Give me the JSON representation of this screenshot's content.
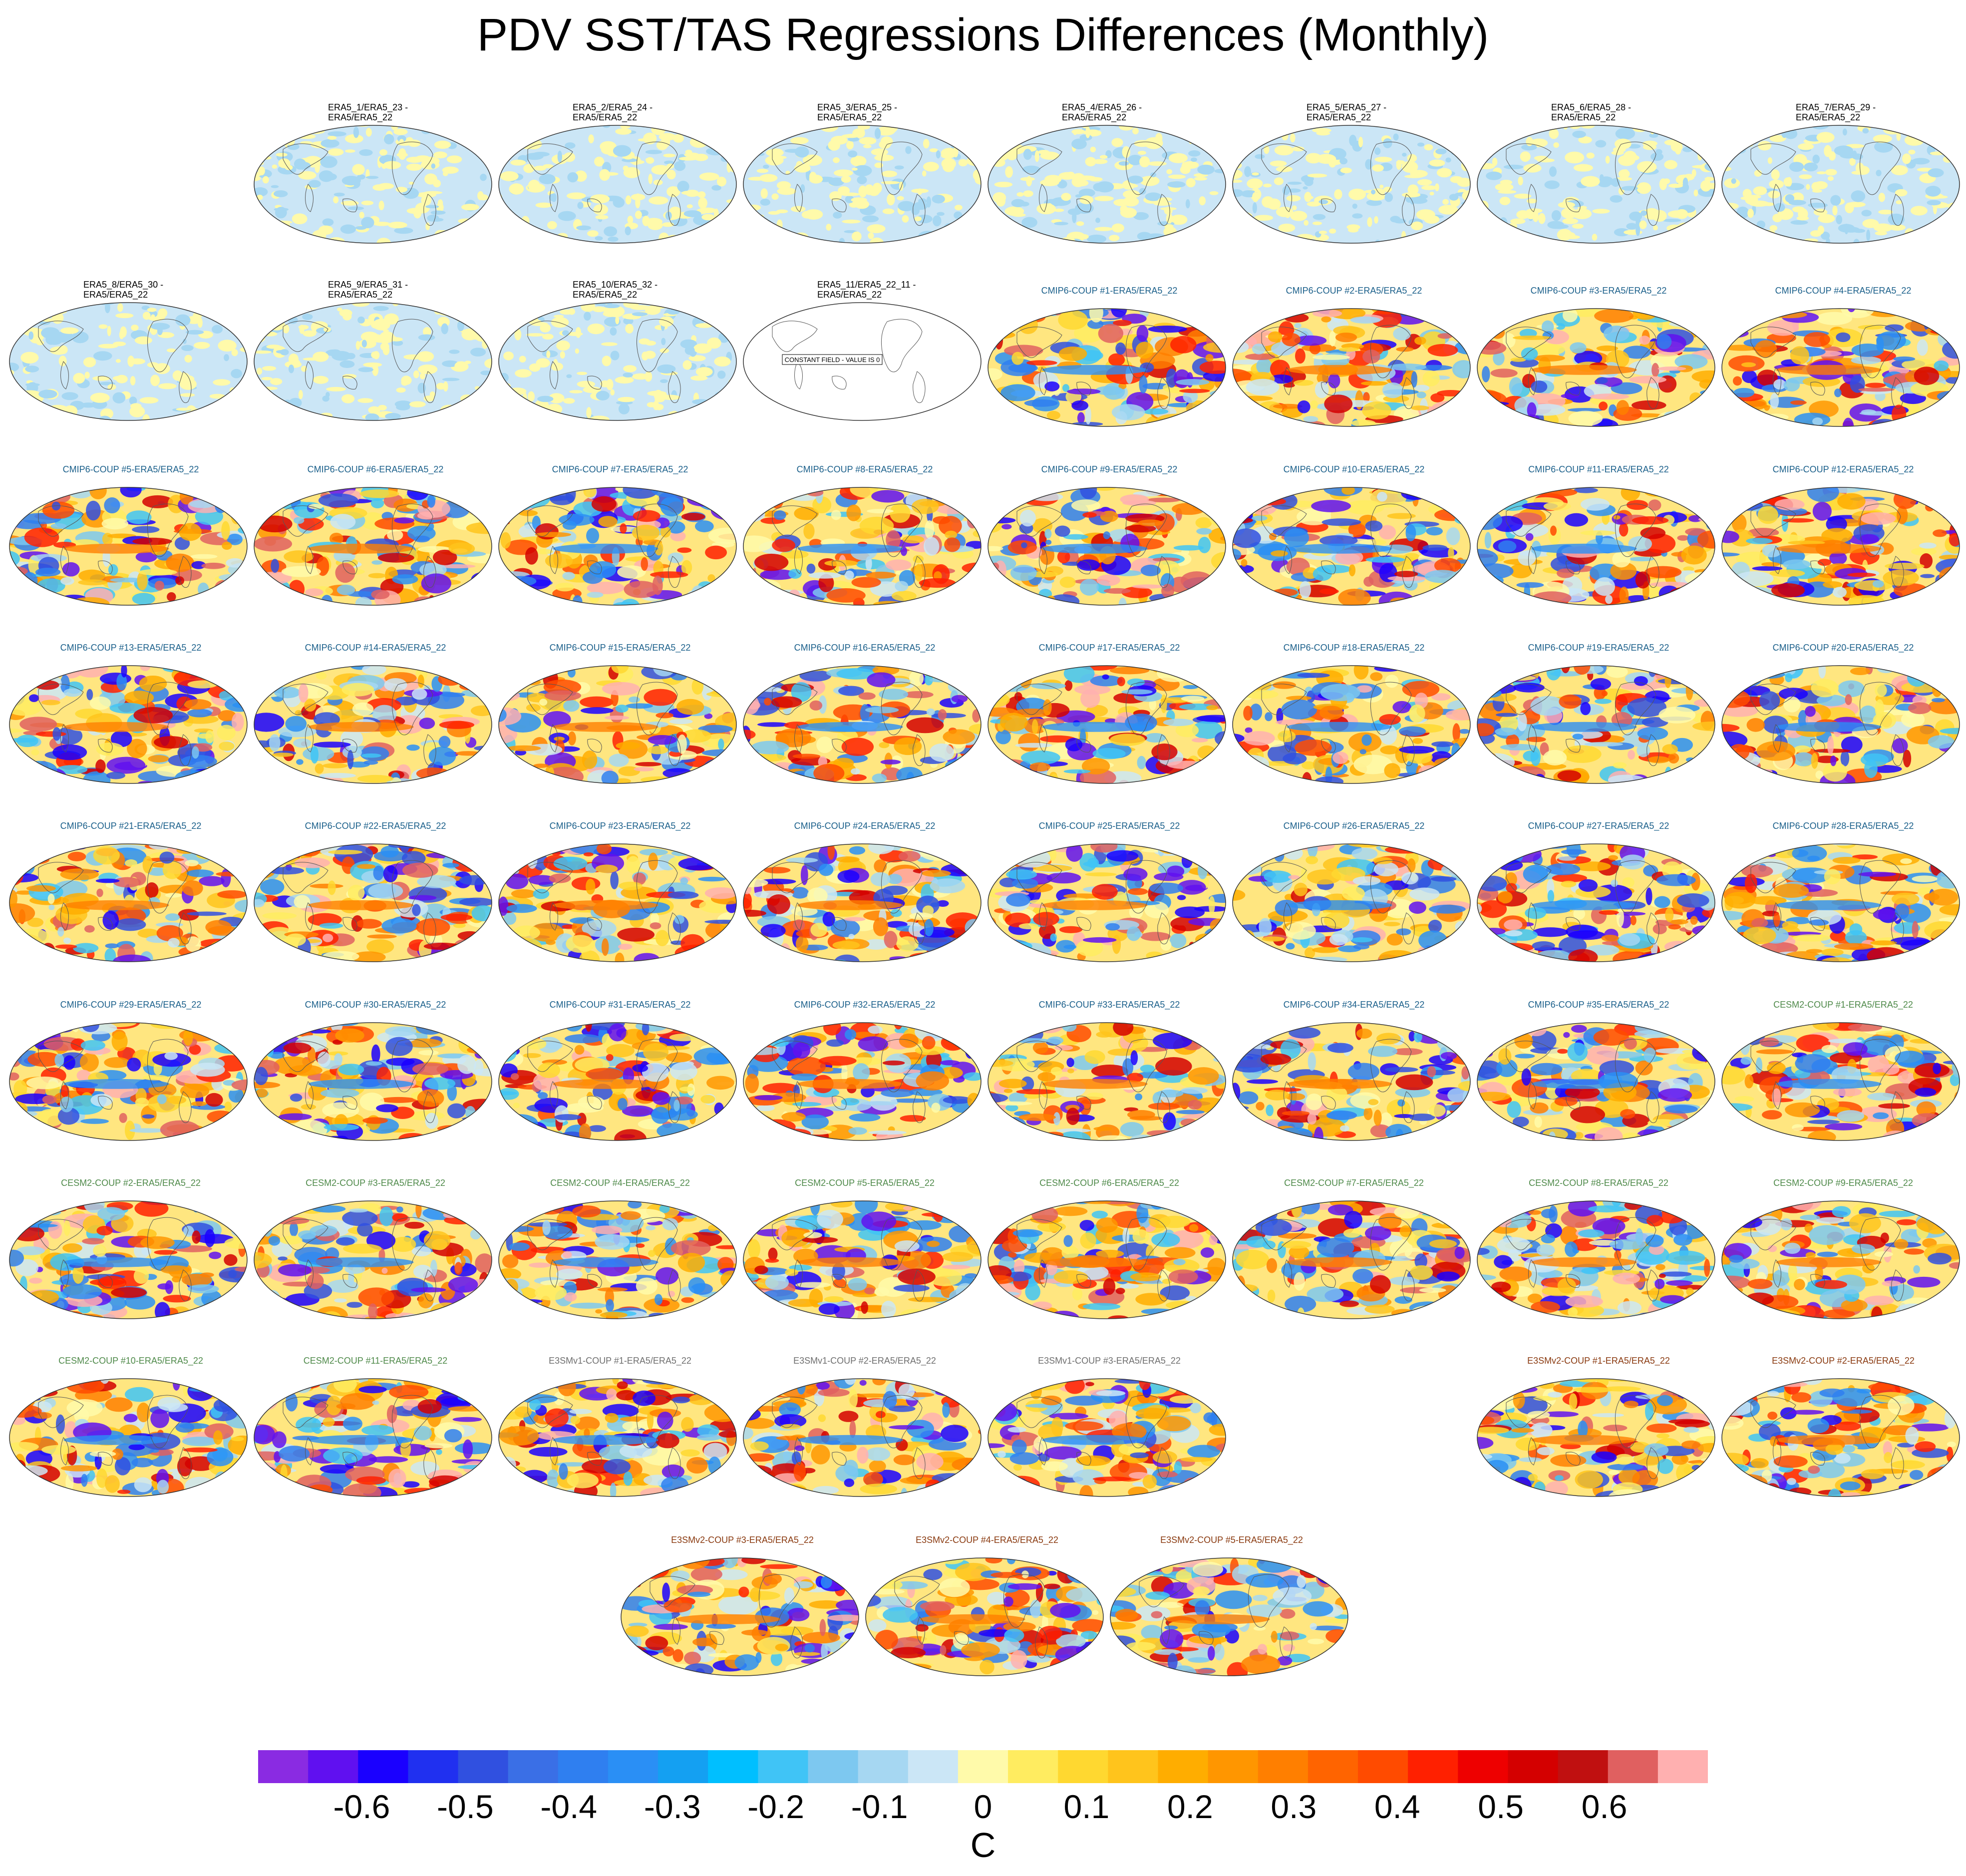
{
  "title": "PDV SST/TAS Regressions Differences (Monthly)",
  "constant_field_note": "CONSTANT FIELD - VALUE IS 0",
  "colorbar": {
    "unit": "C",
    "tick_labels": [
      "-0.6",
      "-0.5",
      "-0.4",
      "-0.3",
      "-0.2",
      "-0.1",
      "0",
      "0.1",
      "0.2",
      "0.3",
      "0.4",
      "0.5",
      "0.6"
    ],
    "colors": [
      "#8a2be2",
      "#6010f0",
      "#1a00ff",
      "#2030f0",
      "#3050e0",
      "#3a6fe6",
      "#2f7ff0",
      "#2a8ff5",
      "#14a0f2",
      "#00bfff",
      "#40c4f6",
      "#7dc8f0",
      "#a6d7f2",
      "#cbe6f6",
      "#fffaaa",
      "#ffec60",
      "#ffd830",
      "#ffc41c",
      "#ffad00",
      "#ff9600",
      "#ff7f00",
      "#ff6400",
      "#ff4b00",
      "#ff2000",
      "#ee0000",
      "#d40000",
      "#c01010",
      "#e06060",
      "#ffb0b0"
    ]
  },
  "panels": [
    {
      "l1": "ERA5_1/ERA5_23 -",
      "l2": "ERA5/ERA5_22",
      "group": "era5"
    },
    {
      "l1": "ERA5_2/ERA5_24 -",
      "l2": "ERA5/ERA5_22",
      "group": "era5"
    },
    {
      "l1": "ERA5_3/ERA5_25 -",
      "l2": "ERA5/ERA5_22",
      "group": "era5"
    },
    {
      "l1": "ERA5_4/ERA5_26 -",
      "l2": "ERA5/ERA5_22",
      "group": "era5"
    },
    {
      "l1": "ERA5_5/ERA5_27 -",
      "l2": "ERA5/ERA5_22",
      "group": "era5"
    },
    {
      "l1": "ERA5_6/ERA5_28 -",
      "l2": "ERA5/ERA5_22",
      "group": "era5"
    },
    {
      "l1": "ERA5_7/ERA5_29 -",
      "l2": "ERA5/ERA5_22",
      "group": "era5"
    },
    {
      "l1": "ERA5_8/ERA5_30 -",
      "l2": "ERA5/ERA5_22",
      "group": "era5"
    },
    {
      "l1": "ERA5_9/ERA5_31 -",
      "l2": "ERA5/ERA5_22",
      "group": "era5"
    },
    {
      "l1": "ERA5_10/ERA5_32 -",
      "l2": "ERA5/ERA5_22",
      "group": "era5"
    },
    {
      "l1": "ERA5_11/ERA5_22_11 -",
      "l2": "ERA5/ERA5_22",
      "group": "const"
    },
    {
      "l1": "CMIP6-COUP  #1-ERA5/ERA5_22",
      "group": "cmip"
    },
    {
      "l1": "CMIP6-COUP  #2-ERA5/ERA5_22",
      "group": "cmip"
    },
    {
      "l1": "CMIP6-COUP  #3-ERA5/ERA5_22",
      "group": "cmip"
    },
    {
      "l1": "CMIP6-COUP  #4-ERA5/ERA5_22",
      "group": "cmip"
    },
    {
      "l1": "CMIP6-COUP  #5-ERA5/ERA5_22",
      "group": "cmip"
    },
    {
      "l1": "CMIP6-COUP  #6-ERA5/ERA5_22",
      "group": "cmip"
    },
    {
      "l1": "CMIP6-COUP  #7-ERA5/ERA5_22",
      "group": "cmip"
    },
    {
      "l1": "CMIP6-COUP  #8-ERA5/ERA5_22",
      "group": "cmip"
    },
    {
      "l1": "CMIP6-COUP  #9-ERA5/ERA5_22",
      "group": "cmip"
    },
    {
      "l1": "CMIP6-COUP  #10-ERA5/ERA5_22",
      "group": "cmip"
    },
    {
      "l1": "CMIP6-COUP  #11-ERA5/ERA5_22",
      "group": "cmip"
    },
    {
      "l1": "CMIP6-COUP  #12-ERA5/ERA5_22",
      "group": "cmip"
    },
    {
      "l1": "CMIP6-COUP  #13-ERA5/ERA5_22",
      "group": "cmip"
    },
    {
      "l1": "CMIP6-COUP  #14-ERA5/ERA5_22",
      "group": "cmip"
    },
    {
      "l1": "CMIP6-COUP  #15-ERA5/ERA5_22",
      "group": "cmip"
    },
    {
      "l1": "CMIP6-COUP  #16-ERA5/ERA5_22",
      "group": "cmip"
    },
    {
      "l1": "CMIP6-COUP  #17-ERA5/ERA5_22",
      "group": "cmip"
    },
    {
      "l1": "CMIP6-COUP  #18-ERA5/ERA5_22",
      "group": "cmip"
    },
    {
      "l1": "CMIP6-COUP  #19-ERA5/ERA5_22",
      "group": "cmip"
    },
    {
      "l1": "CMIP6-COUP  #20-ERA5/ERA5_22",
      "group": "cmip"
    },
    {
      "l1": "CMIP6-COUP  #21-ERA5/ERA5_22",
      "group": "cmip"
    },
    {
      "l1": "CMIP6-COUP  #22-ERA5/ERA5_22",
      "group": "cmip"
    },
    {
      "l1": "CMIP6-COUP  #23-ERA5/ERA5_22",
      "group": "cmip"
    },
    {
      "l1": "CMIP6-COUP  #24-ERA5/ERA5_22",
      "group": "cmip"
    },
    {
      "l1": "CMIP6-COUP  #25-ERA5/ERA5_22",
      "group": "cmip"
    },
    {
      "l1": "CMIP6-COUP  #26-ERA5/ERA5_22",
      "group": "cmip"
    },
    {
      "l1": "CMIP6-COUP  #27-ERA5/ERA5_22",
      "group": "cmip"
    },
    {
      "l1": "CMIP6-COUP  #28-ERA5/ERA5_22",
      "group": "cmip"
    },
    {
      "l1": "CMIP6-COUP  #29-ERA5/ERA5_22",
      "group": "cmip"
    },
    {
      "l1": "CMIP6-COUP  #30-ERA5/ERA5_22",
      "group": "cmip"
    },
    {
      "l1": "CMIP6-COUP  #31-ERA5/ERA5_22",
      "group": "cmip"
    },
    {
      "l1": "CMIP6-COUP  #32-ERA5/ERA5_22",
      "group": "cmip"
    },
    {
      "l1": "CMIP6-COUP  #33-ERA5/ERA5_22",
      "group": "cmip"
    },
    {
      "l1": "CMIP6-COUP  #34-ERA5/ERA5_22",
      "group": "cmip"
    },
    {
      "l1": "CMIP6-COUP  #35-ERA5/ERA5_22",
      "group": "cmip"
    },
    {
      "l1": "CESM2-COUP  #1-ERA5/ERA5_22",
      "group": "cesm"
    },
    {
      "l1": "CESM2-COUP  #2-ERA5/ERA5_22",
      "group": "cesm"
    },
    {
      "l1": "CESM2-COUP  #3-ERA5/ERA5_22",
      "group": "cesm"
    },
    {
      "l1": "CESM2-COUP  #4-ERA5/ERA5_22",
      "group": "cesm"
    },
    {
      "l1": "CESM2-COUP  #5-ERA5/ERA5_22",
      "group": "cesm"
    },
    {
      "l1": "CESM2-COUP  #6-ERA5/ERA5_22",
      "group": "cesm"
    },
    {
      "l1": "CESM2-COUP  #7-ERA5/ERA5_22",
      "group": "cesm"
    },
    {
      "l1": "CESM2-COUP  #8-ERA5/ERA5_22",
      "group": "cesm"
    },
    {
      "l1": "CESM2-COUP  #9-ERA5/ERA5_22",
      "group": "cesm"
    },
    {
      "l1": "CESM2-COUP  #10-ERA5/ERA5_22",
      "group": "cesm"
    },
    {
      "l1": "CESM2-COUP  #11-ERA5/ERA5_22",
      "group": "cesm"
    },
    {
      "l1": "E3SMv1-COUP  #1-ERA5/ERA5_22",
      "group": "e3v1"
    },
    {
      "l1": "E3SMv1-COUP  #2-ERA5/ERA5_22",
      "group": "e3v1"
    },
    {
      "l1": "E3SMv1-COUP  #3-ERA5/ERA5_22",
      "group": "e3v1"
    },
    {
      "l1": "E3SMv2-COUP  #1-ERA5/ERA5_22",
      "group": "e3v2"
    },
    {
      "l1": "E3SMv2-COUP  #2-ERA5/ERA5_22",
      "group": "e3v2"
    },
    {
      "l1": "E3SMv2-COUP  #3-ERA5/ERA5_22",
      "group": "e3v2"
    },
    {
      "l1": "E3SMv2-COUP  #4-ERA5/ERA5_22",
      "group": "e3v2"
    },
    {
      "l1": "E3SMv2-COUP  #5-ERA5/ERA5_22",
      "group": "e3v2"
    }
  ]
}
